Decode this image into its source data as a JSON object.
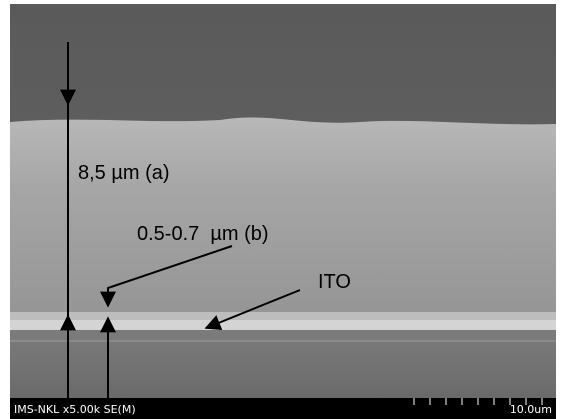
{
  "annotations": {
    "thickness_a": "8,5 µm (a)",
    "thickness_b": "0.5-0.7  µm (b)",
    "ito": "ITO"
  },
  "footer": {
    "info": "IMS-NKL x5.00k SE(M)",
    "scale": "10.0um"
  }
}
